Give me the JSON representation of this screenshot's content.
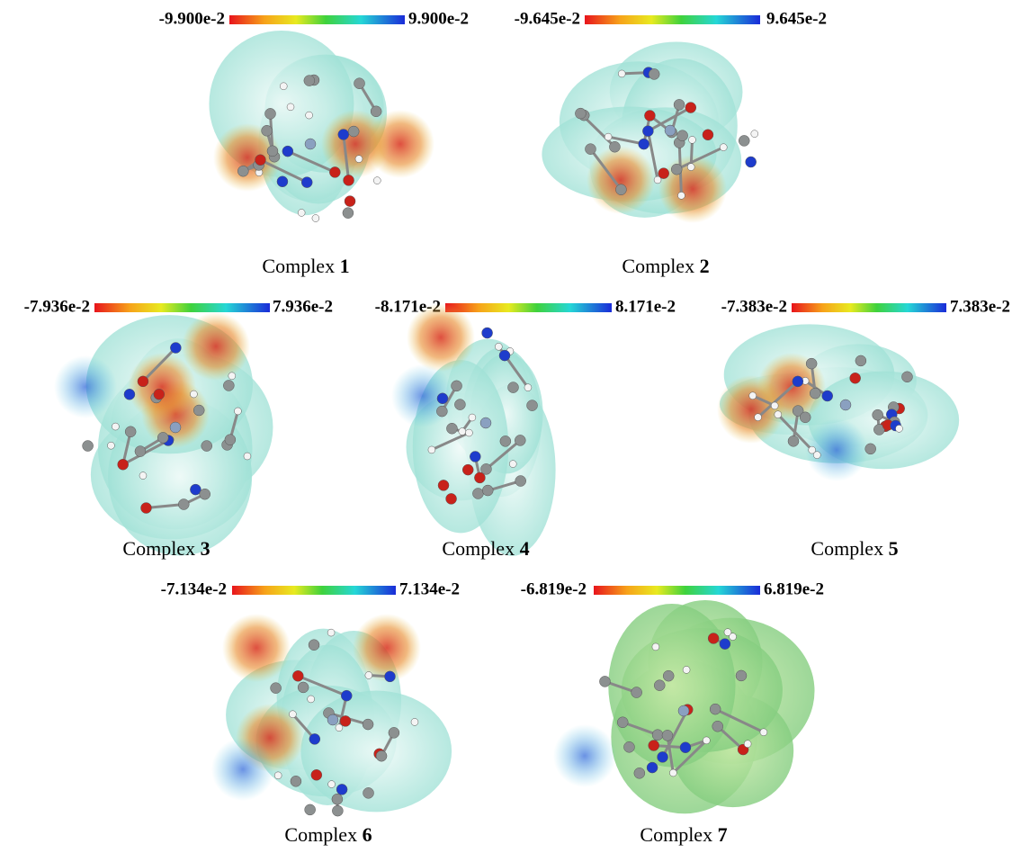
{
  "panels": [
    {
      "min_label": "-9.900e-2",
      "max_label": "9.900e-2",
      "caption": "Complex",
      "number": "1"
    },
    {
      "min_label": "-9.645e-2",
      "max_label": "9.645e-2",
      "caption": "Complex",
      "number": "2"
    },
    {
      "min_label": "-7.936e-2",
      "max_label": "7.936e-2",
      "caption": "Complex",
      "number": "3"
    },
    {
      "min_label": "-8.171e-2",
      "max_label": "8.171e-2",
      "caption": "Complex",
      "number": "4"
    },
    {
      "min_label": "-7.383e-2",
      "max_label": "7.383e-2",
      "caption": "Complex",
      "number": "5"
    },
    {
      "min_label": "-7.134e-2",
      "max_label": "7.134e-2",
      "caption": "Complex",
      "number": "6"
    },
    {
      "min_label": "-6.819e-2",
      "max_label": "6.819e-2",
      "caption": "Complex",
      "number": "7"
    }
  ]
}
